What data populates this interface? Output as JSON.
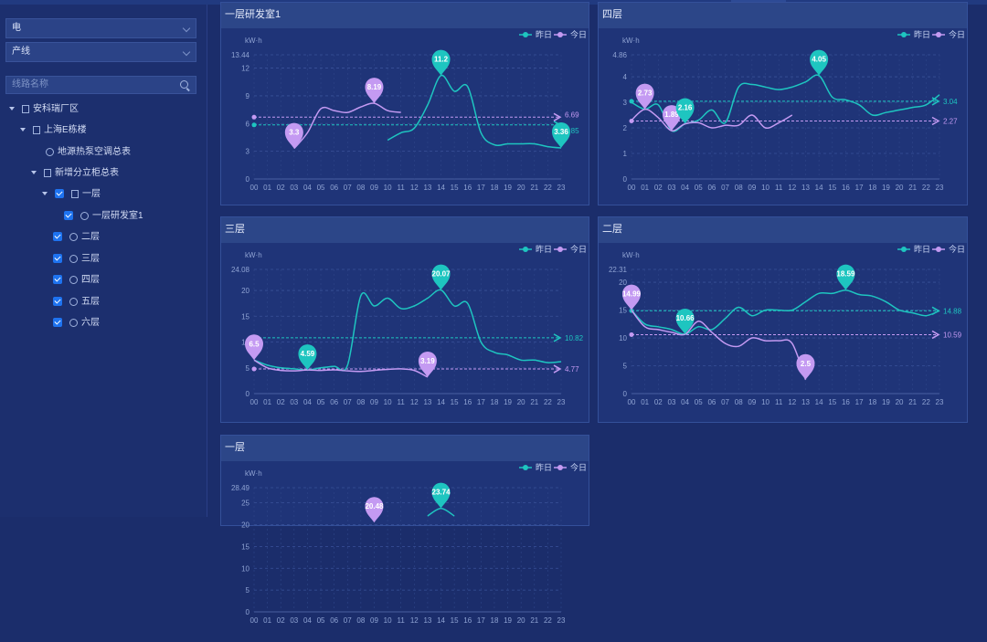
{
  "sidebar": {
    "energy_select": "电",
    "category_select": "产线",
    "search_placeholder": "线路名称",
    "tree": [
      {
        "label": "安科瑞厂区",
        "level": 0,
        "arrow": true,
        "check": false,
        "icon": "building"
      },
      {
        "label": "上海E栋楼",
        "level": 1,
        "arrow": true,
        "check": false,
        "icon": "building"
      },
      {
        "label": "地源热泵空调总表",
        "level": 2,
        "arrow": false,
        "check": false,
        "icon": "meter"
      },
      {
        "label": "新增分立柜总表",
        "level": 1,
        "arrow": true,
        "check": false,
        "icon": "building",
        "indent": 2
      },
      {
        "label": "一层",
        "level": 2,
        "arrow": true,
        "check": true,
        "icon": "building",
        "indent": 3
      },
      {
        "label": "一层研发室1",
        "level": 3,
        "arrow": false,
        "check": true,
        "icon": "meter",
        "indent": 4
      },
      {
        "label": "二层",
        "level": 2,
        "arrow": false,
        "check": true,
        "icon": "meter",
        "indent": 3
      },
      {
        "label": "三层",
        "level": 2,
        "arrow": false,
        "check": true,
        "icon": "meter",
        "indent": 3
      },
      {
        "label": "四层",
        "level": 2,
        "arrow": false,
        "check": true,
        "icon": "meter",
        "indent": 3
      },
      {
        "label": "五层",
        "level": 2,
        "arrow": false,
        "check": true,
        "icon": "meter",
        "indent": 3
      },
      {
        "label": "六层",
        "level": 2,
        "arrow": false,
        "check": true,
        "icon": "meter",
        "indent": 3
      }
    ]
  },
  "colors": {
    "yesterday": "#1ec5c0",
    "today": "#c49af2"
  },
  "legend": {
    "yesterday": "昨日",
    "today": "今日"
  },
  "chart_data": [
    {
      "type": "line",
      "title": "一层研发室1",
      "ylabel": "kW·h",
      "ymax_label": "13.44",
      "ylim": [
        0,
        13.44
      ],
      "yticks": [
        0,
        3,
        6,
        9,
        12
      ],
      "x": [
        "00",
        "01",
        "02",
        "03",
        "04",
        "05",
        "06",
        "07",
        "08",
        "09",
        "10",
        "11",
        "12",
        "13",
        "14",
        "15",
        "16",
        "17",
        "18",
        "19",
        "20",
        "21",
        "22",
        "23"
      ],
      "series": [
        {
          "name": "昨日",
          "values": [
            null,
            null,
            null,
            null,
            null,
            null,
            null,
            null,
            null,
            null,
            4.2,
            5.0,
            5.5,
            8.0,
            11.2,
            9.5,
            10.0,
            5.0,
            3.7,
            3.8,
            3.8,
            3.8,
            3.5,
            3.36
          ],
          "avg": 5.85
        },
        {
          "name": "今日",
          "values": [
            null,
            null,
            null,
            3.3,
            5.0,
            7.6,
            7.4,
            7.2,
            7.8,
            8.19,
            7.4,
            7.2,
            null,
            null,
            null,
            null,
            null,
            null,
            null,
            null,
            null,
            null,
            null,
            null
          ],
          "avg": 6.69
        }
      ],
      "markers": [
        {
          "series": "今日",
          "x": "03",
          "value": "3.3"
        },
        {
          "series": "今日",
          "x": "09",
          "value": "8.19"
        },
        {
          "series": "昨日",
          "x": "14",
          "value": "11.2"
        },
        {
          "series": "昨日",
          "x": "23",
          "value": "3.36"
        }
      ],
      "avg_labels": {
        "昨日": "5.85",
        "今日": "6.69"
      }
    },
    {
      "type": "line",
      "title": "四层",
      "ylabel": "kW·h",
      "ymax_label": "4.86",
      "ylim": [
        0,
        4.86
      ],
      "yticks": [
        0,
        1,
        2,
        3,
        4
      ],
      "x": [
        "00",
        "01",
        "02",
        "03",
        "04",
        "05",
        "06",
        "07",
        "08",
        "09",
        "10",
        "11",
        "12",
        "13",
        "14",
        "15",
        "16",
        "17",
        "18",
        "19",
        "20",
        "21",
        "22",
        "23"
      ],
      "series": [
        {
          "name": "昨日",
          "values": [
            3.0,
            2.73,
            2.9,
            1.89,
            2.16,
            2.3,
            2.7,
            2.2,
            3.6,
            3.7,
            3.6,
            3.5,
            3.6,
            3.8,
            4.05,
            3.2,
            3.1,
            2.9,
            2.5,
            2.6,
            2.7,
            2.8,
            2.9,
            3.3
          ],
          "avg": 3.04
        },
        {
          "name": "今日",
          "values": [
            2.3,
            2.73,
            2.4,
            1.89,
            2.16,
            2.2,
            2.0,
            2.1,
            2.1,
            2.5,
            2.0,
            2.2,
            2.5,
            null,
            null,
            null,
            null,
            null,
            null,
            null,
            null,
            null,
            null,
            null
          ],
          "avg": 2.27
        }
      ],
      "markers": [
        {
          "series": "今日",
          "x": "01",
          "value": "2.73"
        },
        {
          "series": "今日",
          "x": "03",
          "value": "1.89"
        },
        {
          "series": "昨日",
          "x": "04",
          "value": "2.16"
        },
        {
          "series": "昨日",
          "x": "14",
          "value": "4.05"
        }
      ],
      "avg_labels": {
        "昨日": "3.04",
        "今日": "2.27"
      }
    },
    {
      "type": "line",
      "title": "三层",
      "ylabel": "kW·h",
      "ymax_label": "24.08",
      "ylim": [
        0,
        24.08
      ],
      "yticks": [
        0,
        5,
        10,
        15,
        20
      ],
      "x": [
        "00",
        "01",
        "02",
        "03",
        "04",
        "05",
        "06",
        "07",
        "08",
        "09",
        "10",
        "11",
        "12",
        "13",
        "14",
        "15",
        "16",
        "17",
        "18",
        "19",
        "20",
        "21",
        "22",
        "23"
      ],
      "series": [
        {
          "name": "昨日",
          "values": [
            6.5,
            5.5,
            5.0,
            4.8,
            4.59,
            5.0,
            5.3,
            5.5,
            19.0,
            17.0,
            18.5,
            16.5,
            17.0,
            18.5,
            20.07,
            17.0,
            17.5,
            10.0,
            8.0,
            7.5,
            6.5,
            6.5,
            6.0,
            6.2
          ],
          "avg": 10.82
        },
        {
          "name": "今日",
          "values": [
            6.5,
            5.0,
            4.5,
            4.4,
            4.59,
            4.5,
            4.6,
            4.4,
            4.3,
            4.5,
            4.7,
            4.8,
            4.5,
            3.19,
            null,
            null,
            null,
            null,
            null,
            null,
            null,
            null,
            null,
            null
          ],
          "avg": 4.77
        }
      ],
      "markers": [
        {
          "series": "今日",
          "x": "00",
          "value": "6.5"
        },
        {
          "series": "昨日",
          "x": "04",
          "value": "4.59"
        },
        {
          "series": "今日",
          "x": "13",
          "value": "3.19"
        },
        {
          "series": "昨日",
          "x": "14",
          "value": "20.07"
        }
      ],
      "avg_labels": {
        "昨日": "10.82",
        "今日": "4.77"
      }
    },
    {
      "type": "line",
      "title": "二层",
      "ylabel": "kW·h",
      "ymax_label": "22.31",
      "ylim": [
        0,
        22.31
      ],
      "yticks": [
        0,
        5,
        10,
        15,
        20
      ],
      "x": [
        "00",
        "01",
        "02",
        "03",
        "04",
        "05",
        "06",
        "07",
        "08",
        "09",
        "10",
        "11",
        "12",
        "13",
        "14",
        "15",
        "16",
        "17",
        "18",
        "19",
        "20",
        "21",
        "22",
        "23"
      ],
      "series": [
        {
          "name": "昨日",
          "values": [
            14.99,
            12.5,
            12.0,
            11.5,
            10.66,
            12.0,
            11.5,
            13.5,
            15.5,
            14.0,
            15.0,
            15.0,
            15.0,
            16.5,
            18.0,
            18.0,
            18.59,
            17.8,
            17.5,
            16.5,
            15.0,
            14.5,
            14.0,
            14.88
          ],
          "avg": 14.88
        },
        {
          "name": "今日",
          "values": [
            14.99,
            12.0,
            11.5,
            11.0,
            10.66,
            13.0,
            11.0,
            9.0,
            8.5,
            10.0,
            9.5,
            9.5,
            9.0,
            2.5,
            null,
            null,
            null,
            null,
            null,
            null,
            null,
            null,
            null,
            null
          ],
          "avg": 10.59
        }
      ],
      "markers": [
        {
          "series": "今日",
          "x": "00",
          "value": "14.99"
        },
        {
          "series": "昨日",
          "x": "04",
          "value": "10.66"
        },
        {
          "series": "今日",
          "x": "13",
          "value": "2.5"
        },
        {
          "series": "昨日",
          "x": "16",
          "value": "18.59"
        }
      ],
      "avg_labels": {
        "昨日": "14.88",
        "今日": "10.59"
      }
    },
    {
      "type": "line",
      "title": "一层",
      "ylabel": "kW·h",
      "ymax_label": "28.49",
      "ylim": [
        0,
        28.49
      ],
      "yticks": [
        0,
        5,
        10,
        15,
        20,
        25
      ],
      "x": [
        "00",
        "01",
        "02",
        "03",
        "04",
        "05",
        "06",
        "07",
        "08",
        "09",
        "10",
        "11",
        "12",
        "13",
        "14",
        "15",
        "16",
        "17",
        "18",
        "19",
        "20",
        "21",
        "22",
        "23"
      ],
      "series": [
        {
          "name": "昨日",
          "values": [
            null,
            null,
            null,
            null,
            null,
            null,
            null,
            null,
            null,
            null,
            null,
            null,
            null,
            22.0,
            23.74,
            22.0,
            null,
            null,
            null,
            null,
            null,
            null,
            null,
            null
          ],
          "avg": null
        },
        {
          "name": "今日",
          "values": [
            null,
            null,
            null,
            null,
            null,
            null,
            null,
            null,
            null,
            20.48,
            null,
            null,
            null,
            null,
            null,
            null,
            null,
            null,
            null,
            null,
            null,
            null,
            null,
            null
          ],
          "avg": null
        }
      ],
      "markers": [
        {
          "series": "今日",
          "x": "09",
          "value": "20.48"
        },
        {
          "series": "昨日",
          "x": "14",
          "value": "23.74"
        }
      ],
      "avg_labels": {}
    }
  ]
}
